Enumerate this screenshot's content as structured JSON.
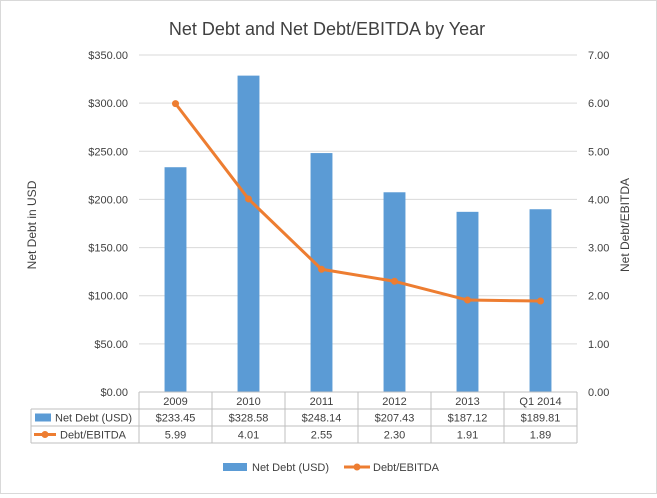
{
  "chart_data": {
    "type": "bar",
    "title": "Net Debt and Net Debt/EBITDA by Year",
    "categories": [
      "2009",
      "2010",
      "2011",
      "2012",
      "2013",
      "Q1 2014"
    ],
    "y_left": {
      "label": "Net Debt in USD",
      "range": [
        0,
        350
      ],
      "ticks": [
        "$0.00",
        "$50.00",
        "$100.00",
        "$150.00",
        "$200.00",
        "$250.00",
        "$300.00",
        "$350.00"
      ]
    },
    "y_right": {
      "label": "Net Debt/EBITDA",
      "range": [
        0,
        7
      ],
      "ticks": [
        "0.00",
        "1.00",
        "2.00",
        "3.00",
        "4.00",
        "5.00",
        "6.00",
        "7.00"
      ]
    },
    "grid": true,
    "series": [
      {
        "name": "Net Debt (USD)",
        "type": "bar",
        "axis": "left",
        "color": "#5b9bd5",
        "values": [
          233.45,
          328.58,
          248.14,
          207.43,
          187.12,
          189.81
        ],
        "table_values": [
          "$233.45",
          "$328.58",
          "$248.14",
          "$207.43",
          "$187.12",
          "$189.81"
        ]
      },
      {
        "name": "Debt/EBITDA",
        "type": "line",
        "axis": "right",
        "color": "#ed7d31",
        "values": [
          5.99,
          4.01,
          2.55,
          2.3,
          1.91,
          1.89
        ],
        "table_values": [
          "5.99",
          "4.01",
          "2.55",
          "2.30",
          "1.91",
          "1.89"
        ]
      }
    ],
    "legend": {
      "placement": "bottom",
      "items": [
        "Net Debt (USD)",
        "Debt/EBITDA"
      ]
    }
  }
}
